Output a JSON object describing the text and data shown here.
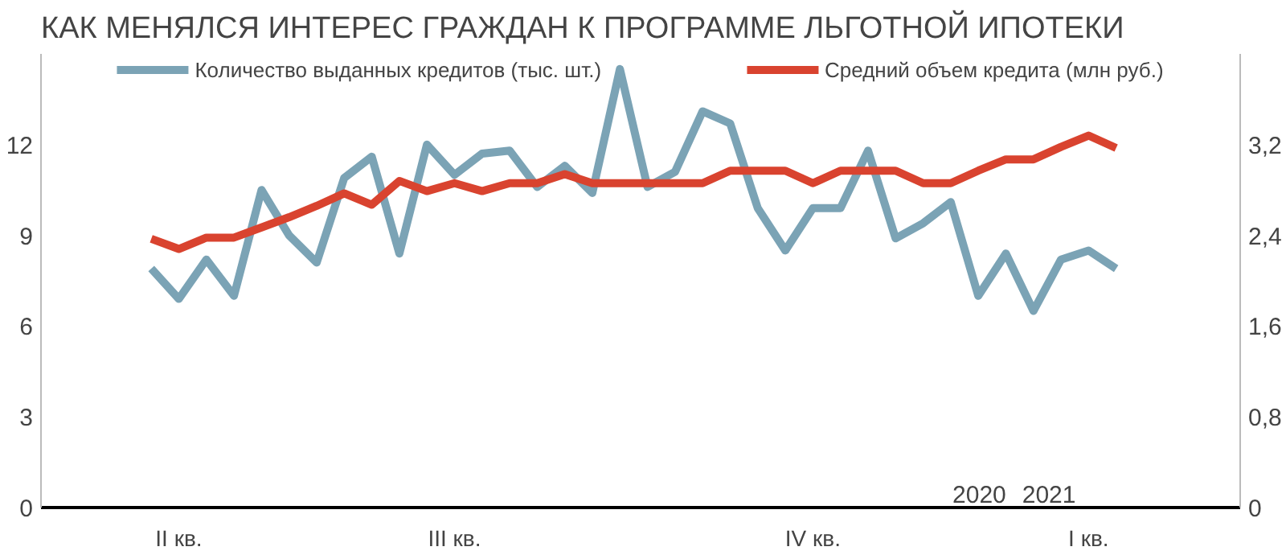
{
  "chart_data": {
    "type": "line",
    "title": "КАК МЕНЯЛСЯ ИНТЕРЕС ГРАЖДАН К ПРОГРАММЕ ЛЬГОТНОЙ ИПОТЕКИ",
    "categories": [
      null,
      "II кв.",
      null,
      null,
      null,
      null,
      null,
      null,
      null,
      null,
      null,
      "III кв.",
      null,
      null,
      null,
      null,
      null,
      null,
      null,
      null,
      null,
      null,
      null,
      null,
      "IV кв.",
      null,
      null,
      null,
      null,
      null,
      null,
      null,
      null,
      null,
      "I кв.",
      null
    ],
    "series": [
      {
        "name": "Количество выданных кредитов (тыс. шт.)",
        "color": "#7ba3b5",
        "values": [
          7.9,
          6.9,
          8.2,
          7.0,
          10.5,
          9.0,
          8.1,
          10.9,
          11.6,
          8.4,
          12.0,
          11.0,
          11.7,
          11.8,
          10.6,
          11.3,
          10.4,
          14.5,
          10.6,
          11.1,
          13.1,
          12.7,
          9.9,
          8.5,
          9.9,
          9.9,
          11.8,
          8.9,
          9.4,
          10.1,
          7.0,
          8.4,
          6.5,
          8.2,
          8.5,
          7.9
        ]
      },
      {
        "name": "Средний объем кредита (млн руб.)",
        "color": "#d9432f",
        "axis": "y2",
        "values": [
          2.37,
          2.28,
          2.38,
          2.38,
          2.47,
          2.56,
          2.66,
          2.77,
          2.67,
          2.88,
          2.79,
          2.86,
          2.79,
          2.86,
          2.86,
          2.94,
          2.86,
          2.86,
          2.86,
          2.86,
          2.86,
          2.97,
          2.97,
          2.97,
          2.86,
          2.97,
          2.97,
          2.97,
          2.86,
          2.86,
          2.97,
          3.07,
          3.07,
          3.18,
          3.28,
          3.17
        ]
      }
    ],
    "ylim": [
      0,
      15
    ],
    "yticks": [
      0,
      3,
      6,
      9,
      12
    ],
    "y2lim": [
      0,
      4
    ],
    "y2ticks": [
      0,
      {
        "value": 0.8,
        "label": "0,8"
      },
      {
        "value": 1.6,
        "label": "1,6"
      },
      {
        "value": 2.4,
        "label": "2,4"
      },
      {
        "value": 3.2,
        "label": "3,2"
      }
    ],
    "annotations": [
      "2020",
      "2021"
    ],
    "legend": "top"
  }
}
